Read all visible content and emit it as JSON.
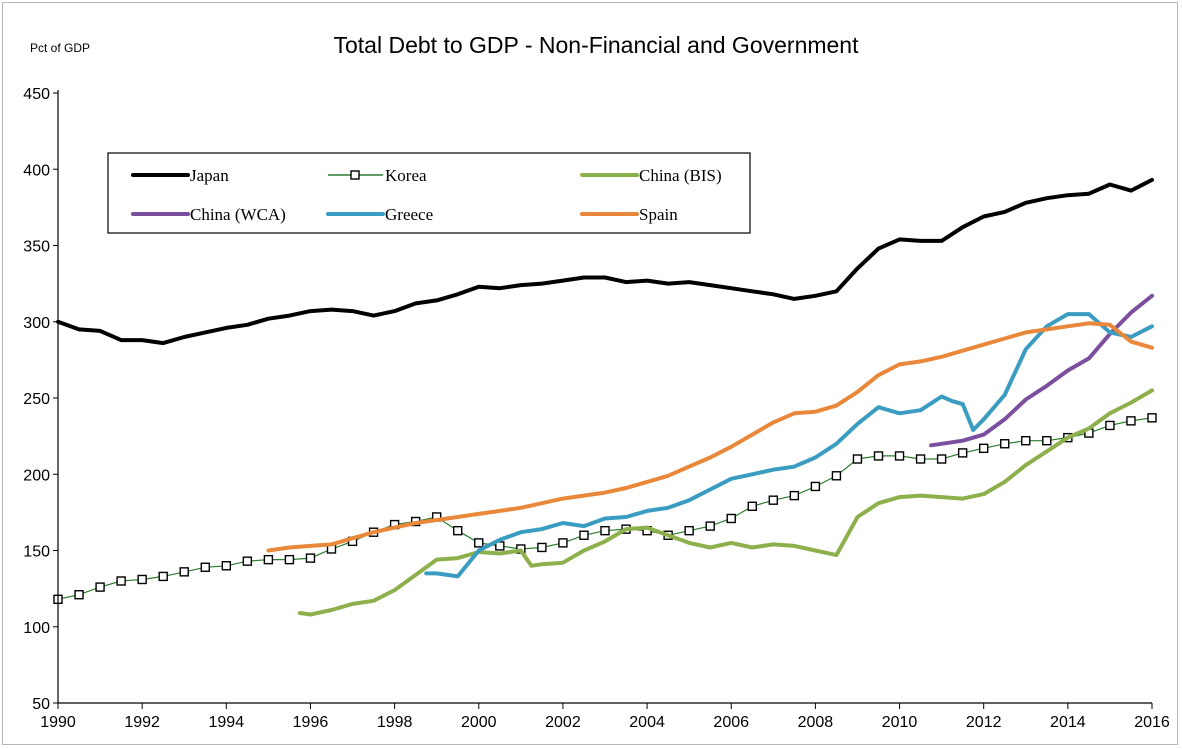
{
  "chart_data": {
    "type": "line",
    "title": "Total Debt to GDP - Non-Financial and Government",
    "ylabel": "Pct of GDP",
    "xlabel": "",
    "xlim": [
      1990,
      2016
    ],
    "ylim": [
      50,
      450
    ],
    "x_ticks": [
      "1990",
      "1992",
      "1994",
      "1996",
      "1998",
      "2000",
      "2002",
      "2004",
      "2006",
      "2008",
      "2010",
      "2012",
      "2014",
      "2016"
    ],
    "y_ticks": [
      "50",
      "100",
      "150",
      "200",
      "250",
      "300",
      "350",
      "400",
      "450"
    ],
    "legend_position": "upper-left, inside plot",
    "grid": false,
    "series": [
      {
        "name": "Japan",
        "color": "#000000",
        "marker": "none",
        "points": [
          [
            1990,
            300
          ],
          [
            1990.5,
            295
          ],
          [
            1991,
            294
          ],
          [
            1991.5,
            288
          ],
          [
            1992,
            288
          ],
          [
            1992.5,
            286
          ],
          [
            1993,
            290
          ],
          [
            1993.5,
            293
          ],
          [
            1994,
            296
          ],
          [
            1994.5,
            298
          ],
          [
            1995,
            302
          ],
          [
            1995.5,
            304
          ],
          [
            1996,
            307
          ],
          [
            1996.5,
            308
          ],
          [
            1997,
            307
          ],
          [
            1997.5,
            304
          ],
          [
            1998,
            307
          ],
          [
            1998.5,
            312
          ],
          [
            1999,
            314
          ],
          [
            1999.5,
            318
          ],
          [
            2000,
            323
          ],
          [
            2000.5,
            322
          ],
          [
            2001,
            324
          ],
          [
            2001.5,
            325
          ],
          [
            2002,
            327
          ],
          [
            2002.5,
            329
          ],
          [
            2003,
            329
          ],
          [
            2003.5,
            326
          ],
          [
            2004,
            327
          ],
          [
            2004.5,
            325
          ],
          [
            2005,
            326
          ],
          [
            2005.5,
            324
          ],
          [
            2006,
            322
          ],
          [
            2006.5,
            320
          ],
          [
            2007,
            318
          ],
          [
            2007.5,
            315
          ],
          [
            2008,
            317
          ],
          [
            2008.5,
            320
          ],
          [
            2009,
            335
          ],
          [
            2009.5,
            348
          ],
          [
            2010,
            354
          ],
          [
            2010.5,
            353
          ],
          [
            2011,
            353
          ],
          [
            2011.5,
            362
          ],
          [
            2012,
            369
          ],
          [
            2012.5,
            372
          ],
          [
            2013,
            378
          ],
          [
            2013.5,
            381
          ],
          [
            2014,
            383
          ],
          [
            2014.5,
            384
          ],
          [
            2015,
            390
          ],
          [
            2015.5,
            386
          ],
          [
            2016,
            393
          ]
        ]
      },
      {
        "name": "Korea",
        "color": "#2d7d2d",
        "marker": "square",
        "points": [
          [
            1990,
            118
          ],
          [
            1990.5,
            121
          ],
          [
            1991,
            126
          ],
          [
            1991.5,
            130
          ],
          [
            1992,
            131
          ],
          [
            1992.5,
            133
          ],
          [
            1993,
            136
          ],
          [
            1993.5,
            139
          ],
          [
            1994,
            140
          ],
          [
            1994.5,
            143
          ],
          [
            1995,
            144
          ],
          [
            1995.5,
            144
          ],
          [
            1996,
            145
          ],
          [
            1996.5,
            151
          ],
          [
            1997,
            156
          ],
          [
            1997.5,
            162
          ],
          [
            1998,
            167
          ],
          [
            1998.5,
            169
          ],
          [
            1999,
            172
          ],
          [
            1999.5,
            163
          ],
          [
            2000,
            155
          ],
          [
            2000.5,
            153
          ],
          [
            2001,
            151
          ],
          [
            2001.5,
            152
          ],
          [
            2002,
            155
          ],
          [
            2002.5,
            160
          ],
          [
            2003,
            163
          ],
          [
            2003.5,
            164
          ],
          [
            2004,
            163
          ],
          [
            2004.5,
            160
          ],
          [
            2005,
            163
          ],
          [
            2005.5,
            166
          ],
          [
            2006,
            171
          ],
          [
            2006.5,
            179
          ],
          [
            2007,
            183
          ],
          [
            2007.5,
            186
          ],
          [
            2008,
            192
          ],
          [
            2008.5,
            199
          ],
          [
            2009,
            210
          ],
          [
            2009.5,
            212
          ],
          [
            2010,
            212
          ],
          [
            2010.5,
            210
          ],
          [
            2011,
            210
          ],
          [
            2011.5,
            214
          ],
          [
            2012,
            217
          ],
          [
            2012.5,
            220
          ],
          [
            2013,
            222
          ],
          [
            2013.5,
            222
          ],
          [
            2014,
            224
          ],
          [
            2014.5,
            227
          ],
          [
            2015,
            232
          ],
          [
            2015.5,
            235
          ],
          [
            2016,
            237
          ]
        ]
      },
      {
        "name": "China (BIS)",
        "color": "#8db04c",
        "marker": "none",
        "points": [
          [
            1995.75,
            109
          ],
          [
            1996,
            108
          ],
          [
            1996.5,
            111
          ],
          [
            1997,
            115
          ],
          [
            1997.5,
            117
          ],
          [
            1998,
            124
          ],
          [
            1998.5,
            134
          ],
          [
            1999,
            144
          ],
          [
            1999.5,
            145
          ],
          [
            2000,
            149
          ],
          [
            2000.5,
            148
          ],
          [
            2001,
            150
          ],
          [
            2001.25,
            140
          ],
          [
            2001.5,
            141
          ],
          [
            2002,
            142
          ],
          [
            2002.5,
            150
          ],
          [
            2003,
            156
          ],
          [
            2003.5,
            164
          ],
          [
            2004,
            165
          ],
          [
            2004.5,
            160
          ],
          [
            2005,
            155
          ],
          [
            2005.5,
            152
          ],
          [
            2006,
            155
          ],
          [
            2006.5,
            152
          ],
          [
            2007,
            154
          ],
          [
            2007.5,
            153
          ],
          [
            2008,
            150
          ],
          [
            2008.5,
            147
          ],
          [
            2009,
            172
          ],
          [
            2009.5,
            181
          ],
          [
            2010,
            185
          ],
          [
            2010.5,
            186
          ],
          [
            2011,
            185
          ],
          [
            2011.5,
            184
          ],
          [
            2012,
            187
          ],
          [
            2012.5,
            195
          ],
          [
            2013,
            206
          ],
          [
            2013.5,
            215
          ],
          [
            2014,
            224
          ],
          [
            2014.5,
            230
          ],
          [
            2015,
            240
          ],
          [
            2015.5,
            247
          ],
          [
            2016,
            255
          ]
        ]
      },
      {
        "name": "China (WCA)",
        "color": "#7b4f9e",
        "marker": "none",
        "points": [
          [
            2010.75,
            219
          ],
          [
            2011,
            220
          ],
          [
            2011.5,
            222
          ],
          [
            2012,
            226
          ],
          [
            2012.5,
            236
          ],
          [
            2013,
            249
          ],
          [
            2013.5,
            258
          ],
          [
            2014,
            268
          ],
          [
            2014.5,
            276
          ],
          [
            2015,
            292
          ],
          [
            2015.5,
            306
          ],
          [
            2016,
            317
          ]
        ]
      },
      {
        "name": "Greece",
        "color": "#3a9cc1",
        "marker": "none",
        "points": [
          [
            1998.75,
            135
          ],
          [
            1999,
            135
          ],
          [
            1999.5,
            133
          ],
          [
            2000,
            150
          ],
          [
            2000.5,
            157
          ],
          [
            2001,
            162
          ],
          [
            2001.5,
            164
          ],
          [
            2002,
            168
          ],
          [
            2002.5,
            166
          ],
          [
            2003,
            171
          ],
          [
            2003.5,
            172
          ],
          [
            2004,
            176
          ],
          [
            2004.5,
            178
          ],
          [
            2005,
            183
          ],
          [
            2005.5,
            190
          ],
          [
            2006,
            197
          ],
          [
            2006.5,
            200
          ],
          [
            2007,
            203
          ],
          [
            2007.5,
            205
          ],
          [
            2008,
            211
          ],
          [
            2008.5,
            220
          ],
          [
            2009,
            233
          ],
          [
            2009.5,
            244
          ],
          [
            2010,
            240
          ],
          [
            2010.5,
            242
          ],
          [
            2011,
            251
          ],
          [
            2011.25,
            248
          ],
          [
            2011.5,
            246
          ],
          [
            2011.75,
            229
          ],
          [
            2012,
            236
          ],
          [
            2012.5,
            252
          ],
          [
            2013,
            282
          ],
          [
            2013.5,
            297
          ],
          [
            2014,
            305
          ],
          [
            2014.5,
            305
          ],
          [
            2015,
            293
          ],
          [
            2015.5,
            290
          ],
          [
            2016,
            297
          ]
        ]
      },
      {
        "name": "Spain",
        "color": "#e9883a",
        "marker": "none",
        "points": [
          [
            1995,
            150
          ],
          [
            1995.5,
            152
          ],
          [
            1996,
            153
          ],
          [
            1996.5,
            154
          ],
          [
            1997,
            158
          ],
          [
            1997.5,
            162
          ],
          [
            1998,
            165
          ],
          [
            1998.5,
            168
          ],
          [
            1999,
            170
          ],
          [
            1999.5,
            172
          ],
          [
            2000,
            174
          ],
          [
            2000.5,
            176
          ],
          [
            2001,
            178
          ],
          [
            2001.5,
            181
          ],
          [
            2002,
            184
          ],
          [
            2002.5,
            186
          ],
          [
            2003,
            188
          ],
          [
            2003.5,
            191
          ],
          [
            2004,
            195
          ],
          [
            2004.5,
            199
          ],
          [
            2005,
            205
          ],
          [
            2005.5,
            211
          ],
          [
            2006,
            218
          ],
          [
            2006.5,
            226
          ],
          [
            2007,
            234
          ],
          [
            2007.5,
            240
          ],
          [
            2008,
            241
          ],
          [
            2008.5,
            245
          ],
          [
            2009,
            254
          ],
          [
            2009.5,
            265
          ],
          [
            2010,
            272
          ],
          [
            2010.5,
            274
          ],
          [
            2011,
            277
          ],
          [
            2011.5,
            281
          ],
          [
            2012,
            285
          ],
          [
            2012.5,
            289
          ],
          [
            2013,
            293
          ],
          [
            2013.5,
            295
          ],
          [
            2014,
            297
          ],
          [
            2014.5,
            299
          ],
          [
            2015,
            298
          ],
          [
            2015.5,
            287
          ],
          [
            2016,
            283
          ]
        ]
      }
    ]
  }
}
